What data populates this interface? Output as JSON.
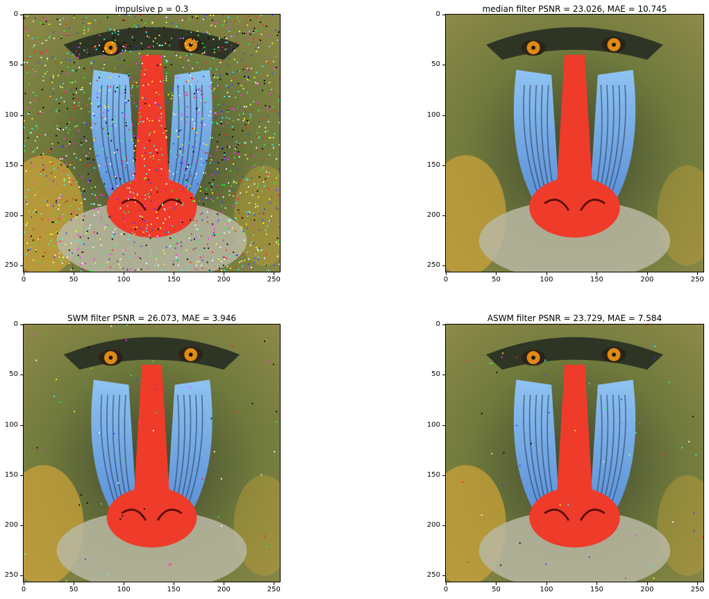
{
  "figure": {
    "panels": [
      {
        "id": "noisy",
        "title": "impulsive p = 0.3",
        "image_subject": "mandrill-face",
        "noise": "heavy",
        "x_ticks": [
          "0",
          "50",
          "100",
          "150",
          "200",
          "250"
        ],
        "y_ticks": [
          "0",
          "50",
          "100",
          "150",
          "200",
          "250"
        ]
      },
      {
        "id": "median",
        "title": "median filter PSNR = 23.026, MAE = 10.745",
        "image_subject": "mandrill-face",
        "noise": "none",
        "x_ticks": [
          "0",
          "50",
          "100",
          "150",
          "200",
          "250"
        ],
        "y_ticks": [
          "0",
          "50",
          "100",
          "150",
          "200",
          "250"
        ]
      },
      {
        "id": "swm",
        "title": "SWM filter PSNR = 26.073, MAE = 3.946",
        "image_subject": "mandrill-face",
        "noise": "light",
        "x_ticks": [
          "0",
          "50",
          "100",
          "150",
          "200",
          "250"
        ],
        "y_ticks": [
          "0",
          "50",
          "100",
          "150",
          "200",
          "250"
        ]
      },
      {
        "id": "aswm",
        "title": "ASWM filter PSNR = 23.729, MAE = 7.584",
        "image_subject": "mandrill-face",
        "noise": "light",
        "x_ticks": [
          "0",
          "50",
          "100",
          "150",
          "200",
          "250"
        ],
        "y_ticks": [
          "0",
          "50",
          "100",
          "150",
          "200",
          "250"
        ]
      }
    ],
    "colors": {
      "fur_green": "#6f7a3c",
      "fur_dark": "#3f4630",
      "fur_gold": "#c9a23a",
      "cheek_blue": "#6ea8e6",
      "nose_red": "#ef3b2a",
      "eye_orange": "#e08a14",
      "beard": "#b9b7a3"
    }
  }
}
